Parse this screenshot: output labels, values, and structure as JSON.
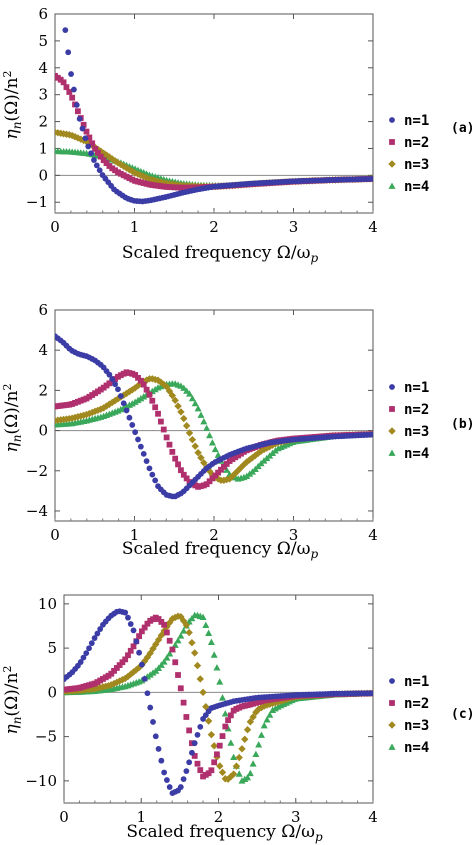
{
  "chart_data": [
    {
      "type": "scatter",
      "panel": "(a)",
      "xlabel": "Scaled frequency Ω/ω",
      "xlabel_sub": "p",
      "ylabel": "η",
      "ylabel_sub": "n",
      "ylabel_rest": "(Ω)/n",
      "ylabel_sup": "2",
      "xlim": [
        0,
        4
      ],
      "ylim": [
        -1.4,
        6
      ],
      "xticks": [
        0,
        1,
        2,
        3,
        4
      ],
      "yticks": [
        -1,
        0,
        1,
        2,
        3,
        4,
        5,
        6
      ],
      "series": [
        {
          "name": "n=1",
          "color": "#3b3ca6",
          "marker": "circle",
          "x": [
            0.13,
            0.2,
            0.3,
            0.4,
            0.5,
            0.6,
            0.75,
            0.9,
            1.0,
            1.1,
            1.2,
            1.4,
            1.6,
            1.8,
            2.0,
            2.2,
            2.5,
            3.0,
            3.5,
            4.0
          ],
          "y": [
            5.4,
            3.8,
            2.2,
            1.2,
            0.5,
            0.0,
            -0.55,
            -0.85,
            -0.95,
            -0.97,
            -0.93,
            -0.8,
            -0.65,
            -0.52,
            -0.42,
            -0.37,
            -0.3,
            -0.22,
            -0.17,
            -0.13
          ]
        },
        {
          "name": "n=2",
          "color": "#b0306e",
          "marker": "square",
          "x": [
            0.0,
            0.1,
            0.2,
            0.3,
            0.4,
            0.5,
            0.6,
            0.7,
            0.8,
            1.0,
            1.2,
            1.4,
            1.6,
            1.8,
            2.0,
            2.2,
            2.5,
            3.0,
            3.5,
            4.0
          ],
          "y": [
            3.7,
            3.5,
            3.0,
            2.3,
            1.6,
            1.0,
            0.6,
            0.3,
            0.1,
            -0.2,
            -0.35,
            -0.43,
            -0.46,
            -0.45,
            -0.42,
            -0.38,
            -0.32,
            -0.23,
            -0.17,
            -0.13
          ]
        },
        {
          "name": "n=3",
          "color": "#a1891f",
          "marker": "diamond",
          "x": [
            0.0,
            0.2,
            0.4,
            0.6,
            0.8,
            1.0,
            1.2,
            1.4,
            1.6,
            1.8,
            2.0,
            2.2,
            2.4,
            2.7,
            3.0,
            3.5,
            4.0
          ],
          "y": [
            1.6,
            1.5,
            1.25,
            0.85,
            0.45,
            0.1,
            -0.15,
            -0.3,
            -0.38,
            -0.41,
            -0.42,
            -0.39,
            -0.34,
            -0.28,
            -0.23,
            -0.17,
            -0.13
          ]
        },
        {
          "name": "n=4",
          "color": "#3aa85a",
          "marker": "triangle",
          "x": [
            0.0,
            0.2,
            0.4,
            0.6,
            0.8,
            1.0,
            1.2,
            1.4,
            1.6,
            1.8,
            2.0,
            2.2,
            2.4,
            2.7,
            3.0,
            3.5,
            4.0
          ],
          "y": [
            0.9,
            0.88,
            0.82,
            0.7,
            0.5,
            0.25,
            0.0,
            -0.18,
            -0.3,
            -0.36,
            -0.38,
            -0.37,
            -0.33,
            -0.27,
            -0.22,
            -0.16,
            -0.12
          ]
        }
      ],
      "legend": "right"
    },
    {
      "type": "scatter",
      "panel": "(b)",
      "xlabel": "Scaled frequency Ω/ω",
      "xlabel_sub": "p",
      "ylabel": "η",
      "ylabel_sub": "n",
      "ylabel_rest": "(Ω)/n",
      "ylabel_sup": "2",
      "xlim": [
        0,
        4
      ],
      "ylim": [
        -4.5,
        6
      ],
      "xticks": [
        0,
        1,
        2,
        3,
        4
      ],
      "yticks": [
        -4,
        -2,
        0,
        2,
        4,
        6
      ],
      "series": [
        {
          "name": "n=1",
          "color": "#3b3ca6",
          "marker": "circle",
          "x": [
            0.0,
            0.1,
            0.2,
            0.3,
            0.4,
            0.5,
            0.6,
            0.7,
            0.8,
            0.9,
            1.0,
            1.1,
            1.2,
            1.3,
            1.4,
            1.5,
            1.6,
            1.7,
            1.8,
            1.9,
            2.0,
            2.2,
            2.4,
            2.7,
            3.0,
            3.5,
            4.0
          ],
          "y": [
            4.7,
            4.4,
            4.0,
            3.8,
            3.7,
            3.5,
            3.2,
            2.7,
            2.0,
            1.0,
            0.0,
            -1.0,
            -2.0,
            -2.8,
            -3.2,
            -3.3,
            -3.1,
            -2.7,
            -2.3,
            -1.9,
            -1.6,
            -1.2,
            -0.9,
            -0.6,
            -0.45,
            -0.3,
            -0.2
          ]
        },
        {
          "name": "n=2",
          "color": "#b0306e",
          "marker": "square",
          "x": [
            0.0,
            0.2,
            0.4,
            0.6,
            0.8,
            0.9,
            1.0,
            1.1,
            1.2,
            1.3,
            1.4,
            1.5,
            1.6,
            1.7,
            1.8,
            1.9,
            2.0,
            2.1,
            2.2,
            2.4,
            2.6,
            2.8,
            3.0,
            3.5,
            4.0
          ],
          "y": [
            1.2,
            1.3,
            1.6,
            2.1,
            2.7,
            2.9,
            2.8,
            2.4,
            1.7,
            0.8,
            -0.3,
            -1.3,
            -2.1,
            -2.6,
            -2.8,
            -2.7,
            -2.3,
            -1.9,
            -1.5,
            -1.0,
            -0.7,
            -0.5,
            -0.4,
            -0.25,
            -0.18
          ]
        },
        {
          "name": "n=3",
          "color": "#a1891f",
          "marker": "diamond",
          "x": [
            0.0,
            0.2,
            0.4,
            0.6,
            0.8,
            1.0,
            1.1,
            1.2,
            1.3,
            1.4,
            1.5,
            1.6,
            1.7,
            1.8,
            1.9,
            2.0,
            2.1,
            2.2,
            2.3,
            2.4,
            2.6,
            2.8,
            3.0,
            3.5,
            4.0
          ],
          "y": [
            0.5,
            0.6,
            0.8,
            1.1,
            1.6,
            2.1,
            2.4,
            2.6,
            2.5,
            2.2,
            1.6,
            0.8,
            -0.2,
            -1.1,
            -1.8,
            -2.3,
            -2.5,
            -2.4,
            -2.0,
            -1.6,
            -1.0,
            -0.6,
            -0.45,
            -0.25,
            -0.18
          ]
        },
        {
          "name": "n=4",
          "color": "#3aa85a",
          "marker": "triangle",
          "x": [
            0.0,
            0.2,
            0.4,
            0.6,
            0.8,
            1.0,
            1.2,
            1.3,
            1.4,
            1.5,
            1.6,
            1.7,
            1.8,
            1.9,
            2.0,
            2.1,
            2.2,
            2.3,
            2.4,
            2.5,
            2.6,
            2.8,
            3.0,
            3.5,
            4.0
          ],
          "y": [
            0.3,
            0.35,
            0.5,
            0.7,
            1.0,
            1.4,
            1.9,
            2.15,
            2.3,
            2.35,
            2.2,
            1.8,
            1.1,
            0.2,
            -0.8,
            -1.6,
            -2.2,
            -2.4,
            -2.3,
            -2.0,
            -1.6,
            -0.9,
            -0.55,
            -0.28,
            -0.18
          ]
        }
      ],
      "legend": "right"
    },
    {
      "type": "scatter",
      "panel": "(c)",
      "xlabel": "Scaled frequency Ω/ω",
      "xlabel_sub": "p",
      "ylabel": "η",
      "ylabel_sub": "n",
      "ylabel_rest": "(Ω)/n",
      "ylabel_sup": "2",
      "xlim": [
        0,
        4
      ],
      "ylim": [
        -12.5,
        11
      ],
      "xticks": [
        0,
        1,
        2,
        3,
        4
      ],
      "yticks": [
        -10,
        -5,
        0,
        5,
        10
      ],
      "series": [
        {
          "name": "n=1",
          "color": "#3b3ca6",
          "marker": "circle",
          "x": [
            0.0,
            0.1,
            0.2,
            0.3,
            0.4,
            0.5,
            0.6,
            0.7,
            0.8,
            0.9,
            1.0,
            1.1,
            1.2,
            1.3,
            1.4,
            1.5,
            1.6,
            1.7,
            1.8,
            1.9,
            2.0,
            2.2,
            2.5,
            3.0,
            3.5,
            4.0
          ],
          "y": [
            1.5,
            2.2,
            3.2,
            4.6,
            6.2,
            7.6,
            8.6,
            9.2,
            9.0,
            7.0,
            3.5,
            -1.0,
            -5.5,
            -9.2,
            -11.4,
            -11.0,
            -8.5,
            -5.5,
            -3.0,
            -1.8,
            -1.5,
            -1.0,
            -0.6,
            -0.3,
            -0.15,
            -0.1
          ]
        },
        {
          "name": "n=2",
          "color": "#b0306e",
          "marker": "square",
          "x": [
            0.0,
            0.2,
            0.4,
            0.6,
            0.8,
            0.9,
            1.0,
            1.1,
            1.2,
            1.3,
            1.4,
            1.5,
            1.6,
            1.7,
            1.8,
            1.9,
            2.0,
            2.1,
            2.2,
            2.3,
            2.4,
            2.6,
            3.0,
            3.5,
            4.0
          ],
          "y": [
            0.3,
            0.5,
            1.0,
            2.0,
            3.8,
            5.2,
            6.8,
            8.0,
            8.5,
            7.6,
            5.0,
            1.0,
            -3.5,
            -7.5,
            -9.5,
            -9.0,
            -6.5,
            -3.5,
            -2.0,
            -1.6,
            -1.4,
            -0.9,
            -0.4,
            -0.2,
            -0.1
          ]
        },
        {
          "name": "n=3",
          "color": "#a1891f",
          "marker": "diamond",
          "x": [
            0.0,
            0.2,
            0.4,
            0.6,
            0.8,
            1.0,
            1.1,
            1.2,
            1.3,
            1.4,
            1.5,
            1.6,
            1.7,
            1.8,
            1.9,
            2.0,
            2.1,
            2.2,
            2.3,
            2.4,
            2.5,
            2.6,
            2.8,
            3.0,
            3.5,
            4.0
          ],
          "y": [
            0.1,
            0.2,
            0.4,
            0.8,
            1.6,
            3.0,
            4.2,
            5.6,
            7.0,
            8.3,
            8.7,
            7.4,
            4.2,
            0.0,
            -4.5,
            -8.0,
            -10.0,
            -9.2,
            -6.5,
            -3.5,
            -2.0,
            -1.5,
            -1.0,
            -0.5,
            -0.2,
            -0.1
          ]
        },
        {
          "name": "n=4",
          "color": "#3aa85a",
          "marker": "triangle",
          "x": [
            0.0,
            0.2,
            0.4,
            0.6,
            0.8,
            1.0,
            1.2,
            1.3,
            1.4,
            1.5,
            1.6,
            1.7,
            1.8,
            1.9,
            2.0,
            2.1,
            2.2,
            2.3,
            2.4,
            2.5,
            2.6,
            2.7,
            2.8,
            3.0,
            3.5,
            4.0
          ],
          "y": [
            0.0,
            0.05,
            0.15,
            0.35,
            0.7,
            1.3,
            2.5,
            3.5,
            4.8,
            6.2,
            7.8,
            8.8,
            8.5,
            6.0,
            2.0,
            -3.0,
            -7.5,
            -10.0,
            -9.5,
            -6.5,
            -3.5,
            -2.0,
            -1.5,
            -0.7,
            -0.25,
            -0.1
          ]
        }
      ],
      "legend": "right"
    }
  ]
}
